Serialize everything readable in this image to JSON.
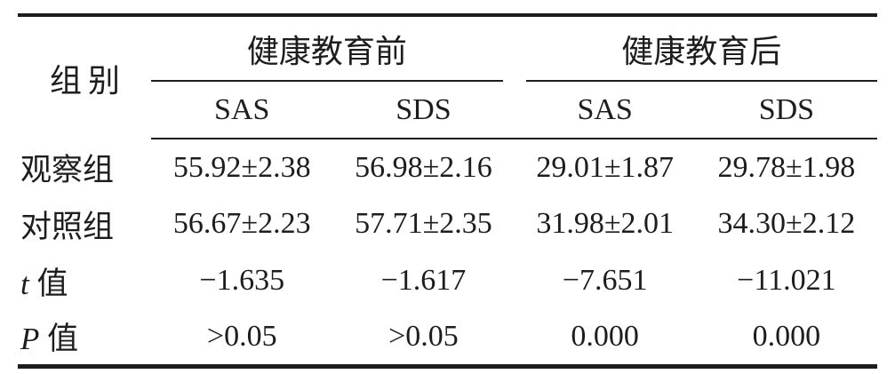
{
  "table": {
    "corner_label": "组别",
    "spanners": [
      {
        "label": "健康教育前"
      },
      {
        "label": "健康教育后"
      }
    ],
    "subheaders": [
      "SAS",
      "SDS",
      "SAS",
      "SDS"
    ],
    "rows": [
      {
        "label_italic": "",
        "label": "观察组",
        "values": [
          "55.92±2.38",
          "56.98±2.16",
          "29.01±1.87",
          "29.78±1.98"
        ]
      },
      {
        "label_italic": "",
        "label": "对照组",
        "values": [
          "56.67±2.23",
          "57.71±2.35",
          "31.98±2.01",
          "34.30±2.12"
        ]
      },
      {
        "label_italic": "t",
        "label": " 值",
        "values": [
          "−1.635",
          "−1.617",
          "−7.651",
          "−11.021"
        ]
      },
      {
        "label_italic": "P",
        "label": " 值",
        "values": [
          ">0.05",
          ">0.05",
          "0.000",
          "0.000"
        ]
      }
    ],
    "colors": {
      "text": "#1d1d1d",
      "rule": "#1d1d1d",
      "background": "#ffffff"
    }
  },
  "chart_data": {
    "type": "table",
    "title": "",
    "columns": [
      "组别",
      "健康教育前 SAS",
      "健康教育前 SDS",
      "健康教育后 SAS",
      "健康教育后 SDS"
    ],
    "rows": [
      [
        "观察组",
        "55.92±2.38",
        "56.98±2.16",
        "29.01±1.87",
        "29.78±1.98"
      ],
      [
        "对照组",
        "56.67±2.23",
        "57.71±2.35",
        "31.98±2.01",
        "34.30±2.12"
      ],
      [
        "t 值",
        "−1.635",
        "−1.617",
        "−7.651",
        "−11.021"
      ],
      [
        "P 值",
        ">0.05",
        ">0.05",
        "0.000",
        "0.000"
      ]
    ]
  }
}
